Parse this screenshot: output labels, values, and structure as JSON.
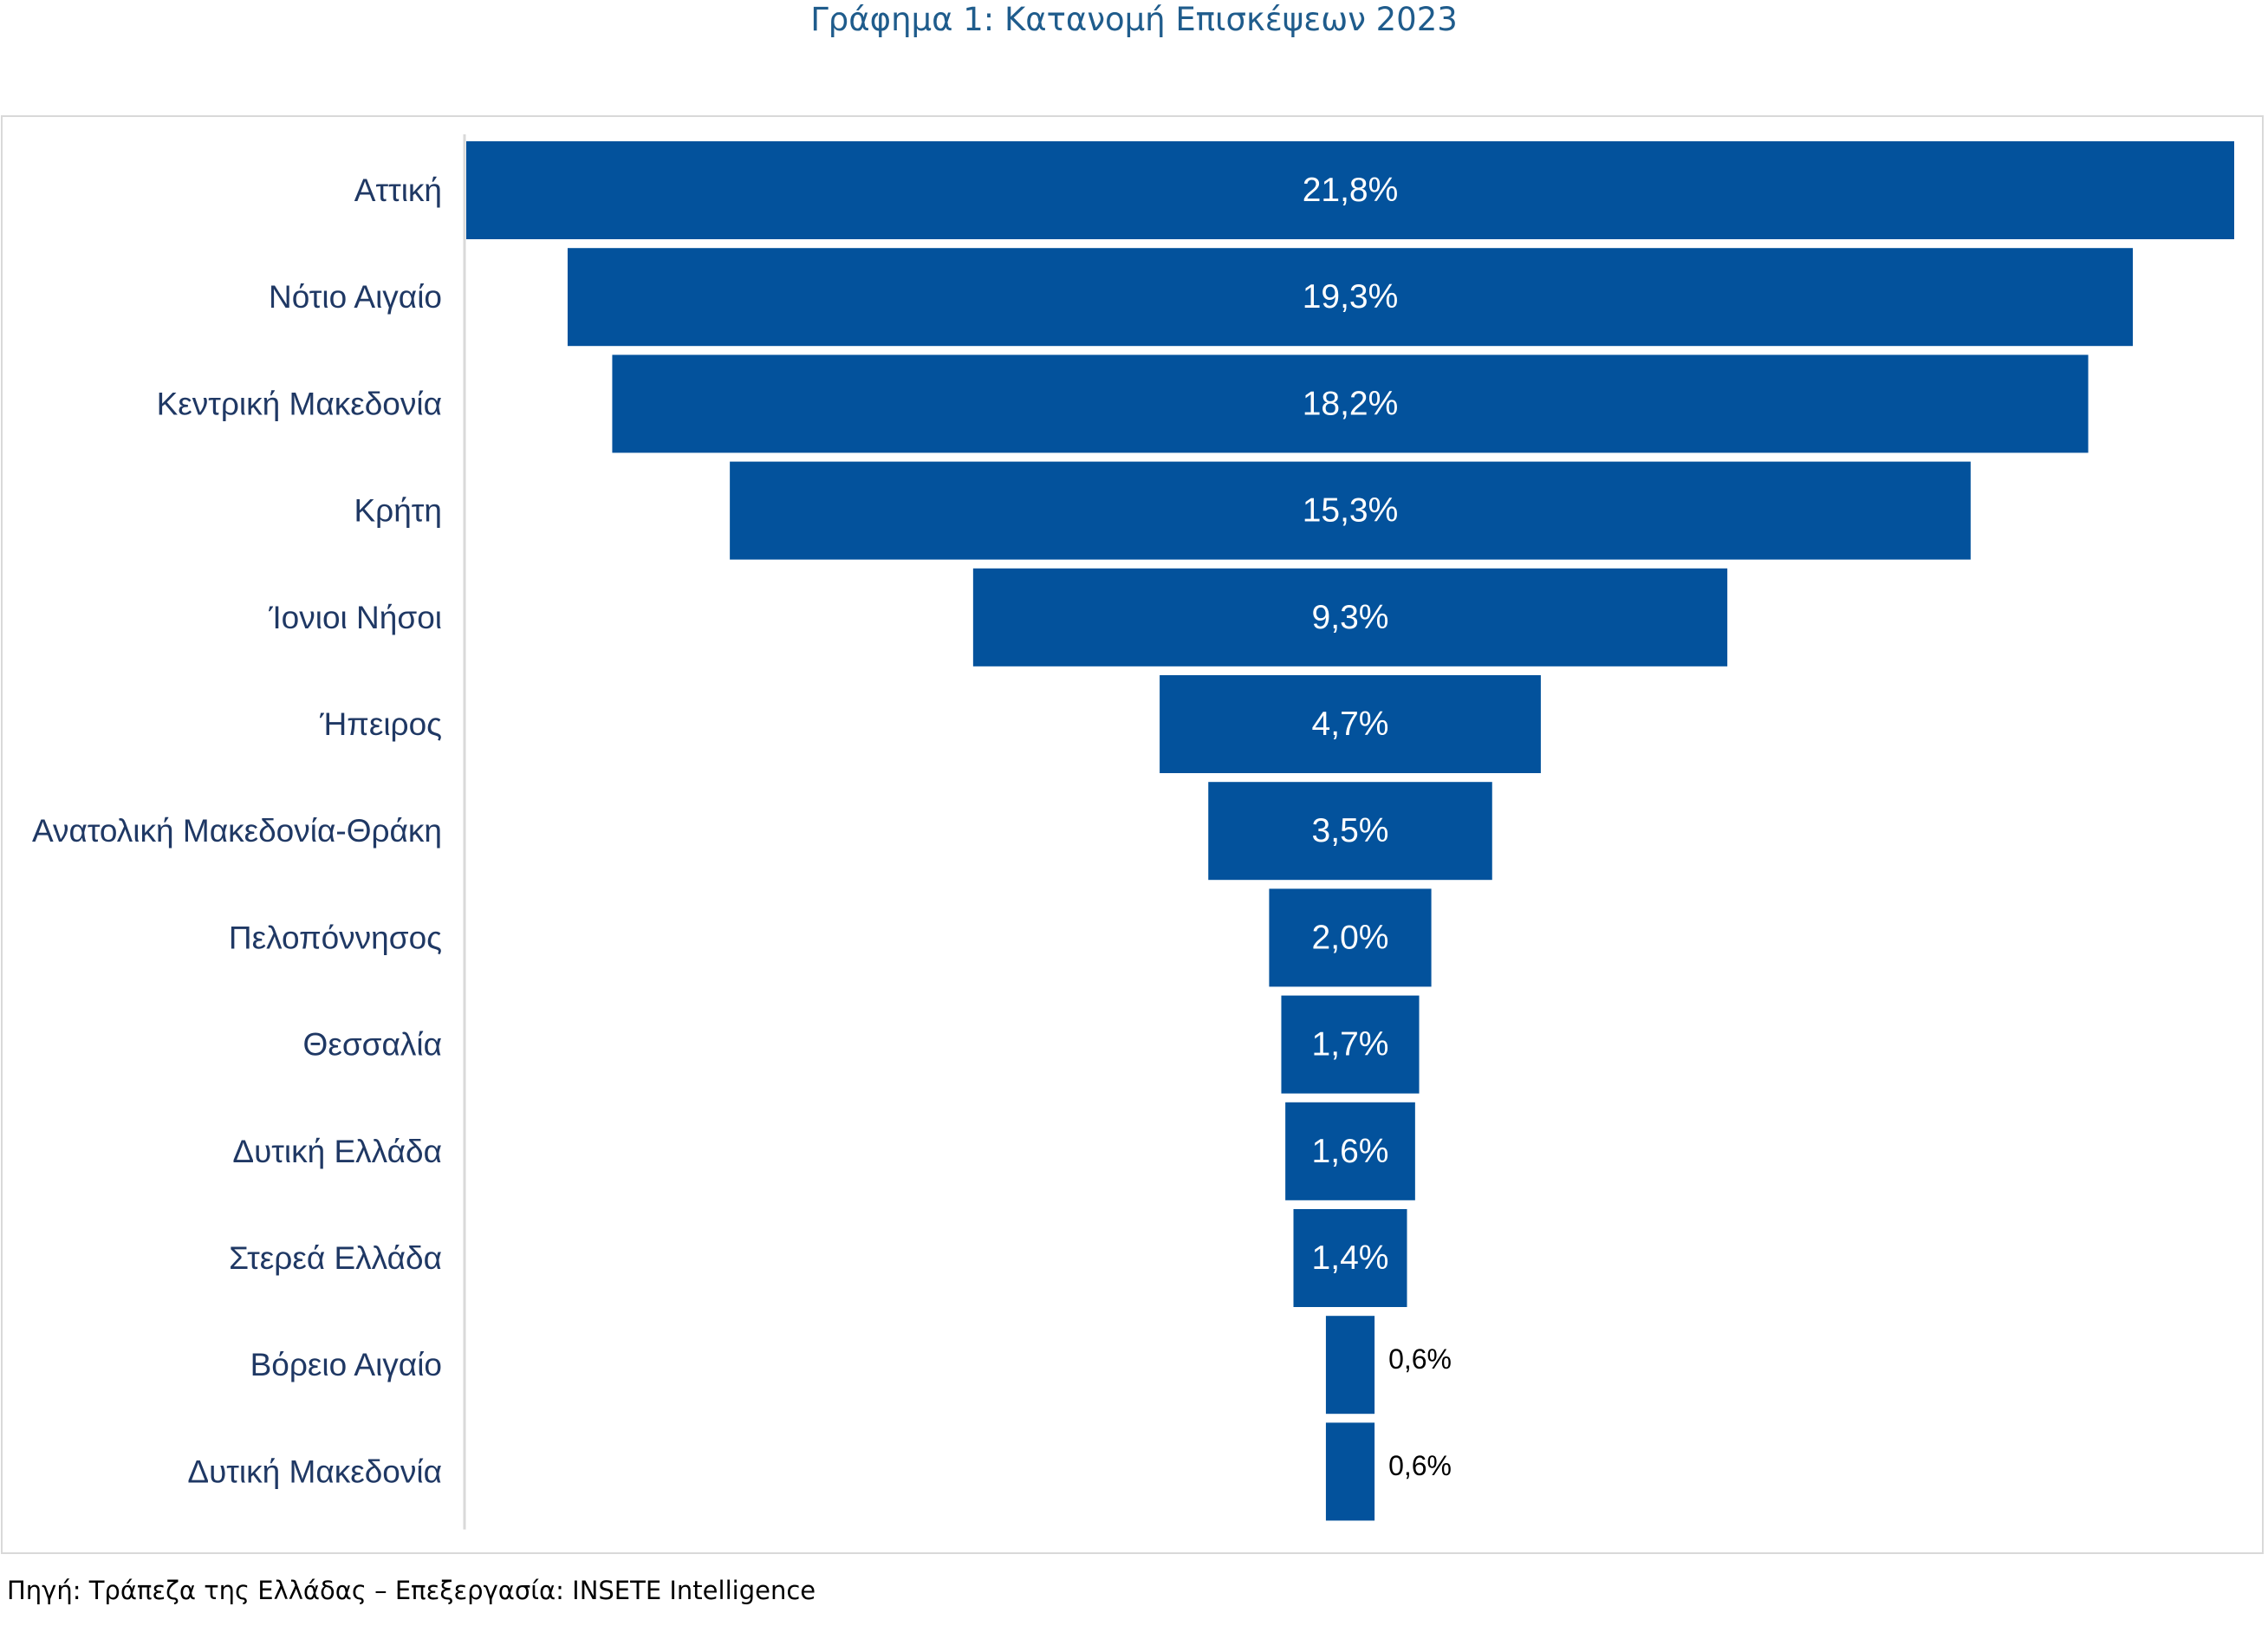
{
  "chart_data": {
    "type": "bar",
    "subtype": "funnel",
    "title": "Γράφημα 1: Κατανομή Επισκέψεων 2023",
    "categories": [
      "Αττική",
      "Νότιο Αιγαίο",
      "Κεντρική Μακεδονία",
      "Κρήτη",
      "Ίονιοι Νήσοι",
      "Ήπειρος",
      "Ανατολική Μακεδονία-Θράκη",
      "Πελοπόννησος",
      "Θεσσαλία",
      "Δυτική Ελλάδα",
      "Στερεά Ελλάδα",
      "Βόρειο Αιγαίο",
      "Δυτική Μακεδονία"
    ],
    "values": [
      21.8,
      19.3,
      18.2,
      15.3,
      9.3,
      4.7,
      3.5,
      2.0,
      1.7,
      1.6,
      1.4,
      0.6,
      0.6
    ],
    "value_labels": [
      "21,8%",
      "19,3%",
      "18,2%",
      "15,3%",
      "9,3%",
      "4,7%",
      "3,5%",
      "2,0%",
      "1,7%",
      "1,6%",
      "1,4%",
      "0,6%",
      "0,6%"
    ],
    "unit": "%",
    "bar_color": "#03529c",
    "inside_label_color": "#ffffff",
    "outside_label_color": "#000000",
    "category_label_color": "#1f3864",
    "title_color": "#1f5c8c",
    "grid": false,
    "legend": "none"
  },
  "source_note": "Πηγή: Τράπεζα της Ελλάδας – Επεξεργασία: INSETE Intelligence"
}
